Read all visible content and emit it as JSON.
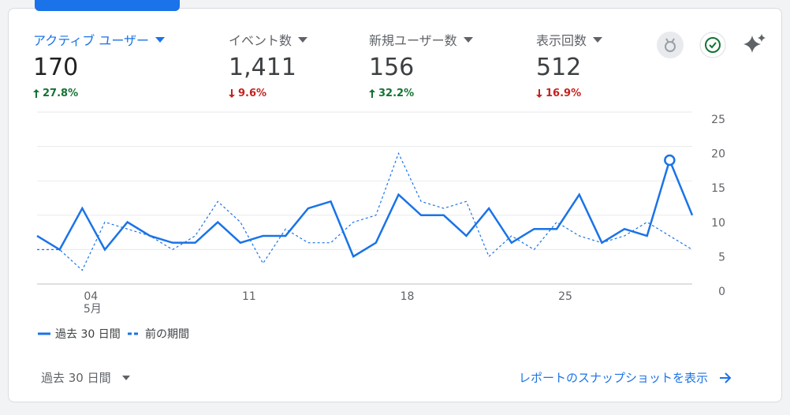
{
  "metrics": [
    {
      "name": "アクティブ ユーザー",
      "value": "170",
      "change": "27.8%",
      "direction": "up",
      "selected": true
    },
    {
      "name": "イベント数",
      "value": "1,411",
      "change": "9.6%",
      "direction": "down",
      "selected": false
    },
    {
      "name": "新規ユーザー数",
      "value": "156",
      "change": "32.2%",
      "direction": "up",
      "selected": false
    },
    {
      "name": "表示回数",
      "value": "512",
      "change": "16.9%",
      "direction": "down",
      "selected": false
    }
  ],
  "chart_data": {
    "type": "line",
    "categories": [
      null,
      null,
      "04",
      null,
      null,
      null,
      null,
      null,
      null,
      "11",
      null,
      null,
      null,
      null,
      null,
      null,
      "18",
      null,
      null,
      null,
      null,
      null,
      null,
      "25",
      null,
      null,
      null,
      null,
      null,
      null
    ],
    "month_label": "5月",
    "series": [
      {
        "name": "過去 30 日間",
        "color": "#1a73e8",
        "dashed": false,
        "values": [
          7,
          5,
          11,
          5,
          9,
          7,
          6,
          6,
          9,
          6,
          7,
          7,
          11,
          12,
          4,
          6,
          13,
          10,
          10,
          7,
          11,
          6,
          8,
          8,
          13,
          6,
          8,
          7,
          18,
          10
        ]
      },
      {
        "name": "前の期間",
        "color": "#1a73e8",
        "dashed": true,
        "values": [
          5,
          5,
          2,
          9,
          8,
          7,
          5,
          7,
          12,
          9,
          3,
          8,
          6,
          6,
          9,
          10,
          19,
          12,
          11,
          12,
          4,
          7,
          5,
          9,
          7,
          6,
          7,
          9,
          7,
          5
        ]
      }
    ],
    "ylim": [
      0,
      25
    ],
    "yticks": [
      0,
      5,
      10,
      15,
      20,
      25
    ],
    "grid": true
  },
  "footer": {
    "period": "過去 30 日間",
    "link": "レポートのスナップショットを表示"
  }
}
